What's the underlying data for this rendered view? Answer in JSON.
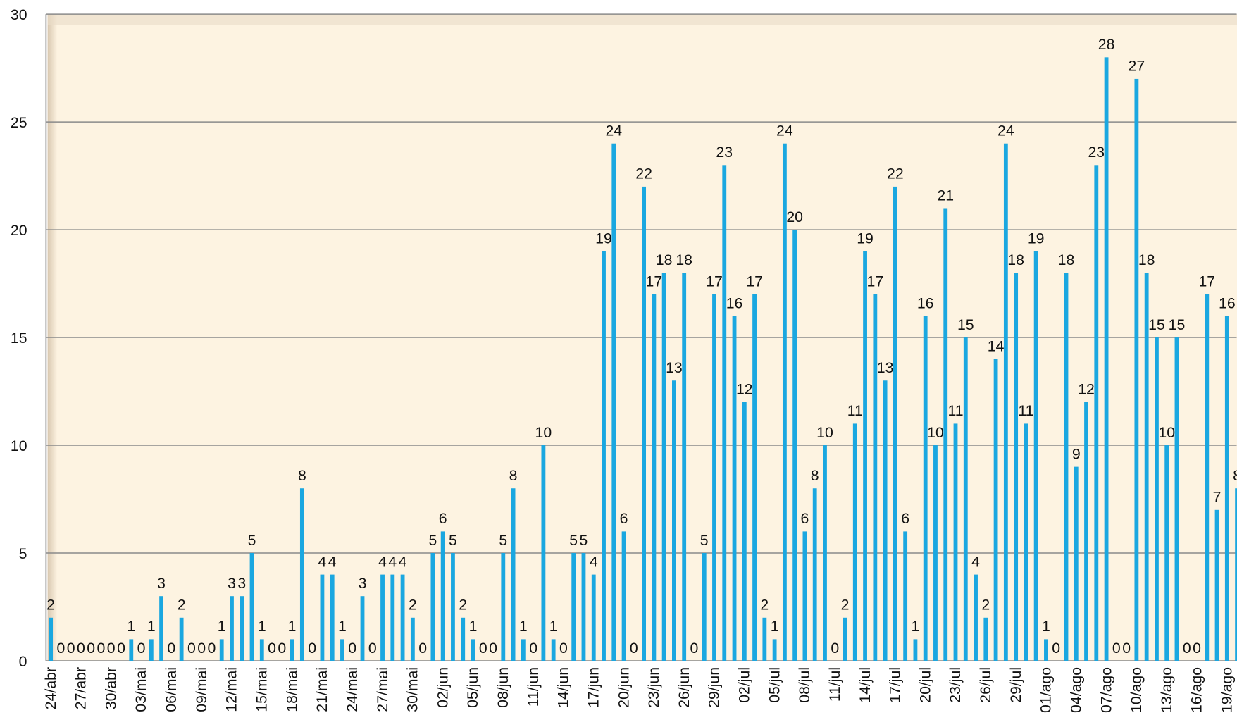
{
  "chart_data": {
    "type": "bar",
    "categories": [
      "24/abr",
      null,
      null,
      "27/abr",
      null,
      null,
      "30/abr",
      null,
      null,
      "03/mai",
      null,
      null,
      "06/mai",
      null,
      null,
      "09/mai",
      null,
      null,
      "12/mai",
      null,
      null,
      "15/mai",
      null,
      null,
      "18/mai",
      null,
      null,
      "21/mai",
      null,
      null,
      "24/mai",
      null,
      null,
      "27/mai",
      null,
      null,
      "30/mai",
      null,
      null,
      "02/jun",
      null,
      null,
      "05/jun",
      null,
      null,
      "08/jun",
      null,
      null,
      "11/jun",
      null,
      null,
      "14/jun",
      null,
      null,
      "17/jun",
      null,
      null,
      "20/jun",
      null,
      null,
      "23/jun",
      null,
      null,
      "26/jun",
      null,
      null,
      "29/jun",
      null,
      null,
      "02/jul",
      null,
      null,
      "05/jul",
      null,
      null,
      "08/jul",
      null,
      null,
      "11/jul",
      null,
      null,
      "14/jul",
      null,
      null,
      "17/jul",
      null,
      null,
      "20/jul",
      null,
      null,
      "23/jul",
      null,
      null,
      "26/jul",
      null,
      null,
      "29/jul",
      null,
      null,
      "01/ago",
      null,
      null,
      "04/ago",
      null,
      null,
      "07/ago",
      null,
      null,
      "10/ago",
      null,
      null,
      "13/ago",
      null,
      null,
      "16/ago",
      null,
      null,
      "19/ago",
      null
    ],
    "values": [
      2,
      0,
      0,
      0,
      0,
      0,
      0,
      0,
      1,
      0,
      1,
      3,
      0,
      2,
      0,
      0,
      0,
      1,
      3,
      3,
      5,
      1,
      0,
      0,
      1,
      8,
      0,
      4,
      4,
      1,
      0,
      3,
      0,
      4,
      4,
      4,
      2,
      0,
      5,
      6,
      5,
      2,
      1,
      0,
      0,
      5,
      8,
      1,
      0,
      10,
      1,
      0,
      5,
      5,
      4,
      19,
      24,
      6,
      0,
      22,
      17,
      18,
      13,
      18,
      0,
      5,
      17,
      23,
      16,
      12,
      17,
      2,
      1,
      24,
      20,
      6,
      8,
      10,
      0,
      2,
      11,
      19,
      17,
      13,
      22,
      6,
      1,
      16,
      10,
      21,
      11,
      15,
      4,
      2,
      14,
      24,
      18,
      11,
      19,
      1,
      0,
      18,
      9,
      12,
      23,
      28,
      0,
      0,
      27,
      18,
      15,
      10,
      15,
      0,
      0,
      17,
      7,
      16,
      8
    ],
    "color": "#1aa7e0",
    "ylim": [
      0,
      30
    ],
    "yticks": [
      0,
      5,
      10,
      15,
      20,
      25,
      30
    ],
    "grid": true
  }
}
